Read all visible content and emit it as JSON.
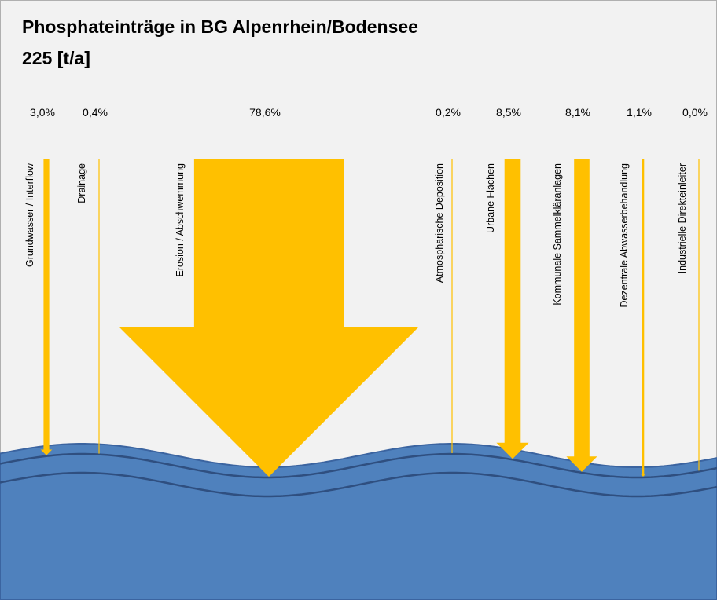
{
  "chart_data": {
    "type": "flow",
    "title": "Phosphateinträge in BG Alpenrhein/Bodensee",
    "subtitle": "225 [t/a]",
    "categories": [
      "Grundwasser  / Interflow",
      "Drainage",
      "Erosion / Abschwemmung",
      "Atmosphärische Deposition",
      "Urbane  Flächen",
      "Kommunale  Sammelkläranlagen",
      "Dezentrale  Abwasserbehandlung",
      "Industrielle  Direkteinleiter"
    ],
    "values": [
      3.0,
      0.4,
      78.6,
      0.2,
      8.5,
      8.1,
      1.1,
      0.0
    ],
    "value_labels": [
      "3,0%",
      "0,4%",
      "78,6%",
      "0,2%",
      "8,5%",
      "8,1%",
      "1,1%",
      "0,0%"
    ],
    "color": "#ffc000"
  }
}
